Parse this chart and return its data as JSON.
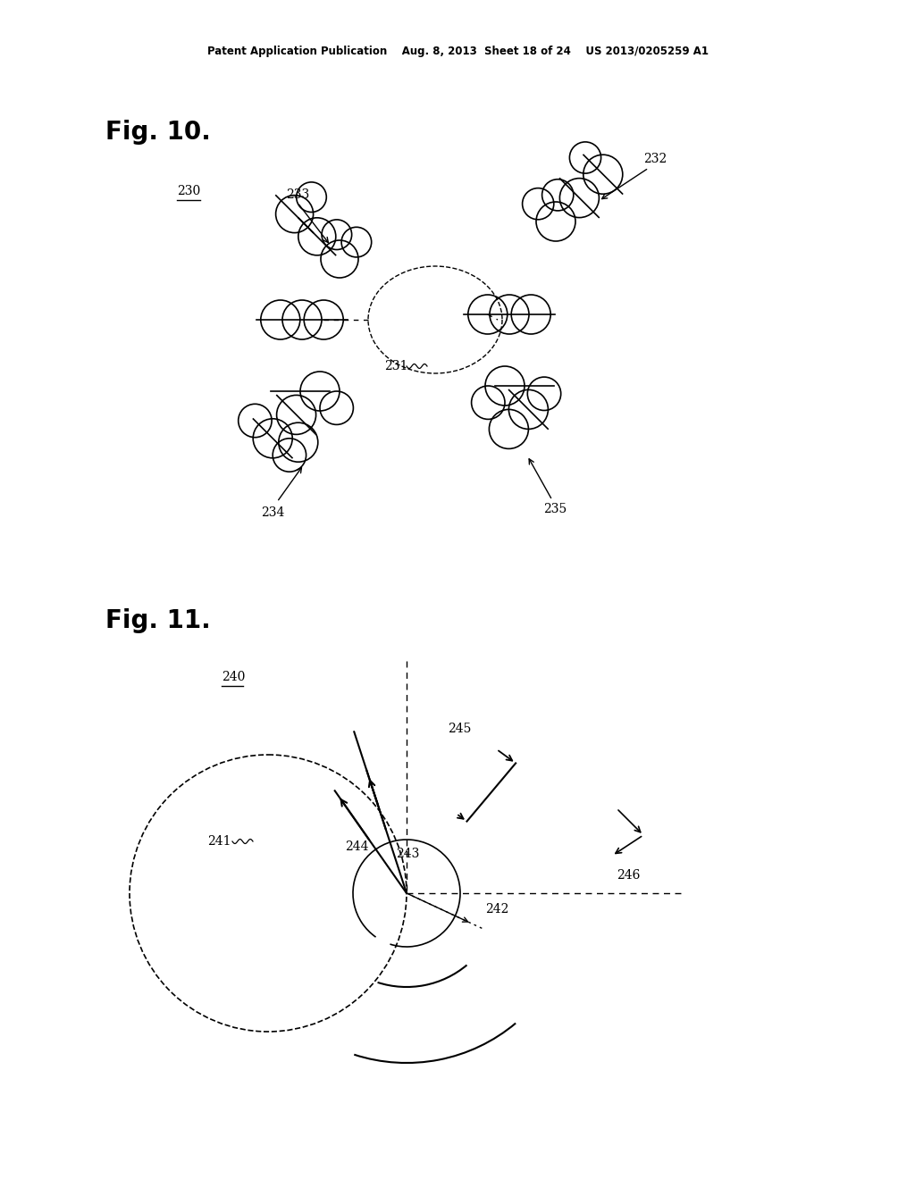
{
  "bg_color": "#ffffff",
  "text_color": "#000000",
  "header_text": "Patent Application Publication    Aug. 8, 2013  Sheet 18 of 24    US 2013/0205259 A1",
  "fig10_label": "Fig. 10.",
  "fig11_label": "Fig. 11.",
  "label_230": "230",
  "label_231": "231",
  "label_232": "232",
  "label_233": "233",
  "label_234": "234",
  "label_235": "235",
  "label_240": "240",
  "label_241": "241",
  "label_242": "242",
  "label_243": "243",
  "label_244": "244",
  "label_245": "245",
  "label_246": "246"
}
